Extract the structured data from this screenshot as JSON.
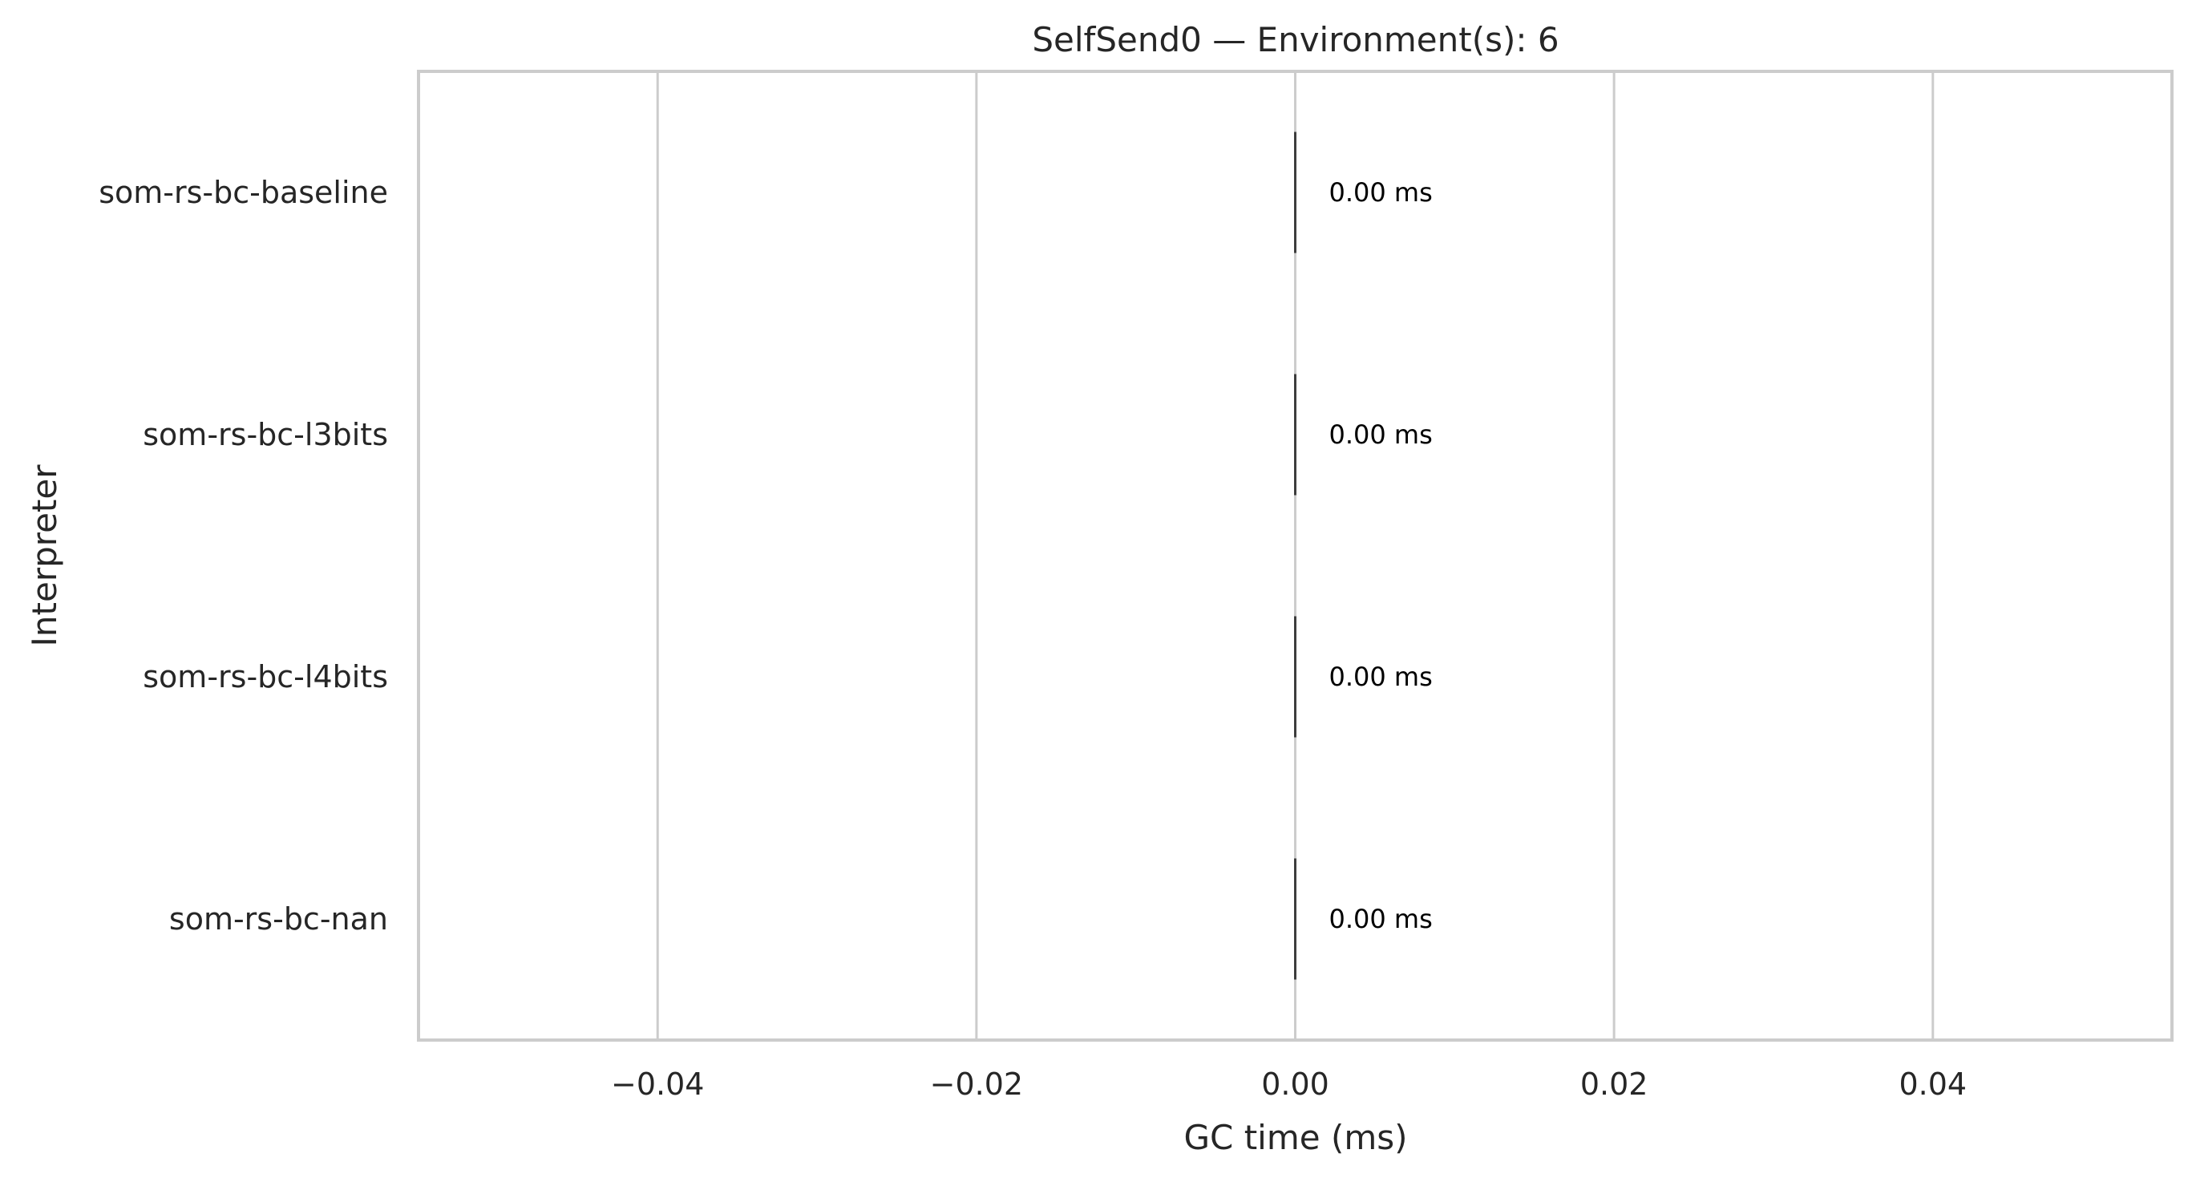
{
  "chart_data": {
    "type": "bar",
    "orientation": "horizontal",
    "title": "SelfSend0 — Environment(s): 6",
    "xlabel": "GC time (ms)",
    "ylabel": "Interpreter",
    "categories": [
      "som-rs-bc-baseline",
      "som-rs-bc-l3bits",
      "som-rs-bc-l4bits",
      "som-rs-bc-nan"
    ],
    "values": [
      0.0,
      0.0,
      0.0,
      0.0
    ],
    "data_labels": [
      "0.00 ms",
      "0.00 ms",
      "0.00 ms",
      "0.00 ms"
    ],
    "xlim": [
      -0.055,
      0.055
    ],
    "xticks": [
      -0.04,
      -0.02,
      0.0,
      0.02,
      0.04
    ],
    "xtick_labels": [
      "−0.04",
      "−0.02",
      "0.00",
      "0.02",
      "0.04"
    ],
    "grid": "vertical",
    "legend": "none",
    "colors": {
      "bar": "#3d3d3d",
      "grid": "#cccccc",
      "frame": "#cccccc",
      "text": "#262626"
    }
  }
}
